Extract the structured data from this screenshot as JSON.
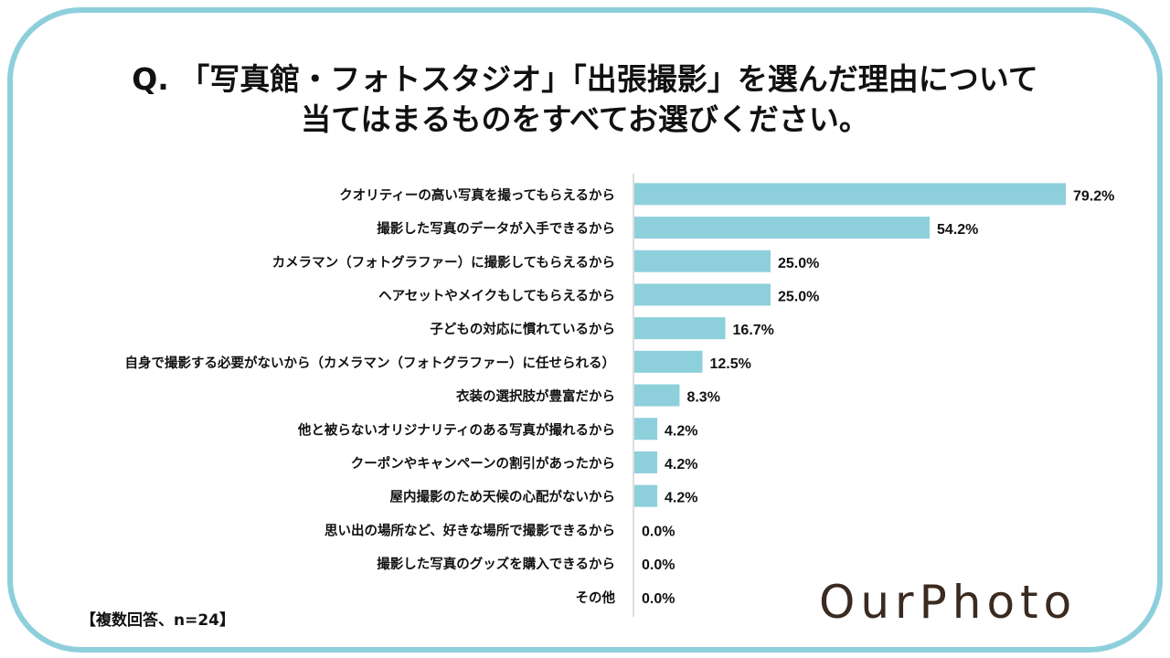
{
  "title": {
    "line1": "Q. 「写真館・フォトスタジオ」「出張撮影」を選んだ理由について",
    "line2": "当てはまるものをすべてお選びください。"
  },
  "note": "【複数回答、n=24】",
  "brand": {
    "logo_text": "OurPhoto",
    "frame_color": "#8ecfdc",
    "bar_color": "#8ecfdc"
  },
  "chart_data": {
    "type": "bar",
    "orientation": "horizontal",
    "value_suffix": "%",
    "categories": [
      "クオリティーの高い写真を撮ってもらえるから",
      "撮影した写真のデータが入手できるから",
      "カメラマン（フォトグラファー）に撮影してもらえるから",
      "ヘアセットやメイクもしてもらえるから",
      "子どもの対応に慣れているから",
      "自身で撮影する必要がないから（カメラマン（フォトグラファー）に任せられる）",
      "衣装の選択肢が豊富だから",
      "他と被らないオリジナリティのある写真が撮れるから",
      "クーポンやキャンペーンの割引があったから",
      "屋内撮影のため天候の心配がないから",
      "思い出の場所など、好きな場所で撮影できるから",
      "撮影した写真のグッズを購入できるから",
      "その他"
    ],
    "values": [
      79.2,
      54.2,
      25.0,
      25.0,
      16.7,
      12.5,
      8.3,
      4.2,
      4.2,
      4.2,
      0.0,
      0.0,
      0.0
    ],
    "value_labels": [
      "79.2%",
      "54.2%",
      "25.0%",
      "25.0%",
      "16.7%",
      "12.5%",
      "8.3%",
      "4.2%",
      "4.2%",
      "4.2%",
      "0.0%",
      "0.0%",
      "0.0%"
    ],
    "xlim": [
      0,
      100
    ],
    "grid": false,
    "legend": "none"
  }
}
